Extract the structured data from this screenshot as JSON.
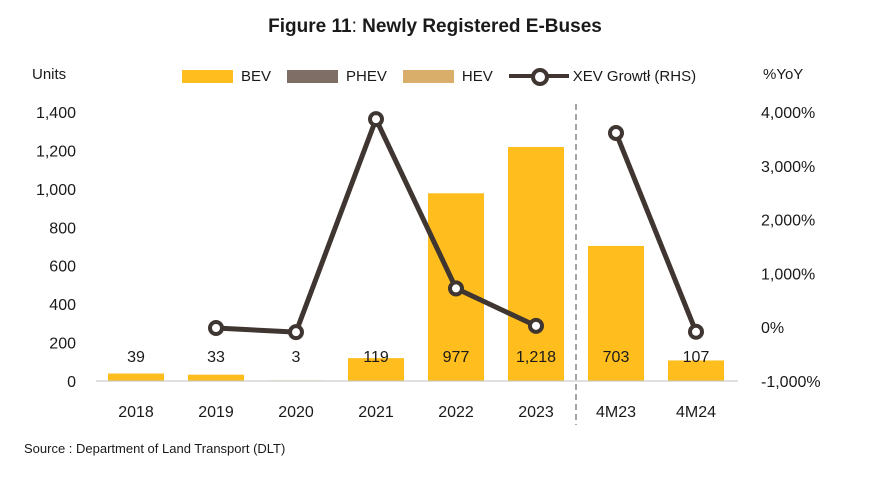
{
  "title_bold": "Figure 11",
  "title_sep": ":",
  "title_rest": " Newly Registered E-Buses",
  "left_axis_unit": "Units",
  "right_axis_unit": "%YoY",
  "source": "Source : Department of Land Transport (DLT)",
  "colors": {
    "bev": "#FFBE1E",
    "phev": "#7F6E66",
    "hev": "#D9AE6A",
    "growth_line": "#3F3531",
    "divider": "#A6A6A6"
  },
  "chart_data": {
    "type": "bar",
    "categories": [
      "2018",
      "2019",
      "2020",
      "2021",
      "2022",
      "2023",
      "4M23",
      "4M24"
    ],
    "series": [
      {
        "name": "BEV",
        "values": [
          39,
          33,
          3,
          119,
          977,
          1218,
          703,
          107
        ]
      },
      {
        "name": "PHEV",
        "values": [
          0,
          0,
          0,
          0,
          0,
          0,
          0,
          0
        ]
      },
      {
        "name": "HEV",
        "values": [
          0,
          0,
          0,
          0,
          0,
          0,
          0,
          0
        ]
      },
      {
        "name": "XEV Growtł (RHS)",
        "type": "line",
        "axis": "right",
        "values": [
          null,
          -15,
          -92,
          3867,
          721,
          25,
          3610,
          -85
        ]
      }
    ],
    "data_labels": [
      "39",
      "33",
      "3",
      "119",
      "977",
      "1,218",
      "703",
      "107"
    ],
    "y_left": {
      "min": 0,
      "max": 1400,
      "ticks": [
        0,
        200,
        400,
        600,
        800,
        1000,
        1200,
        1400
      ],
      "tick_labels": [
        "0",
        "200",
        "400",
        "600",
        "800",
        "1,000",
        "1,200",
        "1,400"
      ]
    },
    "y_right": {
      "min": -1000,
      "max": 4000,
      "ticks": [
        -1000,
        0,
        1000,
        2000,
        3000,
        4000
      ],
      "tick_labels": [
        "-1,000%",
        "0%",
        "1,000%",
        "2,000%",
        "3,000%",
        "4,000%"
      ]
    },
    "line_breaks_after": [
      "2023"
    ],
    "divider_after": "2023",
    "legend_position": "top",
    "grid": false
  }
}
